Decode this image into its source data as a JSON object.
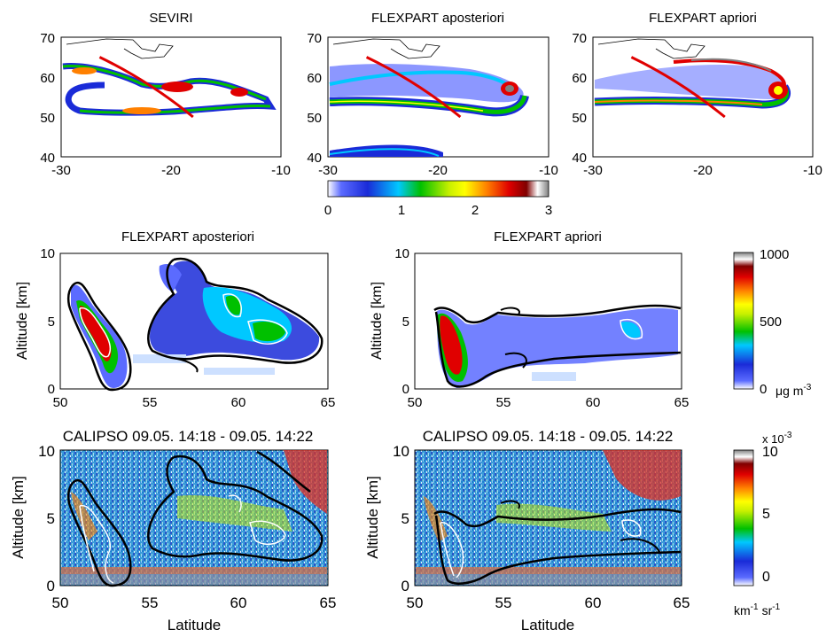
{
  "figure": {
    "top_colorbar": {
      "ticks": [
        "0",
        "1",
        "2",
        "3"
      ]
    },
    "conc_colorbar": {
      "ticks": [
        "0",
        "500",
        "1000"
      ],
      "unit_prefix": "μg m",
      "unit_exp": "-3"
    },
    "back_colorbar": {
      "ticks": [
        "0",
        "5",
        "10"
      ],
      "scale_prefix": "x 10",
      "scale_exp": "-3",
      "unit_a": "km",
      "unit_a_exp": "-1",
      "unit_b": "sr",
      "unit_b_exp": "-1"
    }
  },
  "chart_data": [
    {
      "type": "heatmap",
      "title": "SEVIRI",
      "xlim": [
        -30,
        -10
      ],
      "ylim": [
        40,
        70
      ],
      "x_ticks": [
        "-30",
        "-20",
        "-10"
      ],
      "y_ticks": [
        "40",
        "50",
        "60",
        "70"
      ],
      "track": {
        "x": [
          -26.5,
          -22,
          -18
        ],
        "y": [
          65,
          59,
          50
        ]
      }
    },
    {
      "type": "heatmap",
      "title": "FLEXPART aposteriori",
      "xlim": [
        -30,
        -10
      ],
      "ylim": [
        40,
        70
      ],
      "x_ticks": [
        "-30",
        "-20",
        "-10"
      ],
      "y_ticks": [
        "40",
        "50",
        "60",
        "70"
      ],
      "track": {
        "x": [
          -26.5,
          -22,
          -18
        ],
        "y": [
          65,
          59,
          50
        ]
      }
    },
    {
      "type": "heatmap",
      "title": "FLEXPART apriori",
      "xlim": [
        -30,
        -10
      ],
      "ylim": [
        40,
        70
      ],
      "x_ticks": [
        "-30",
        "-20",
        "-10"
      ],
      "y_ticks": [
        "40",
        "50",
        "60",
        "70"
      ],
      "track": {
        "x": [
          -26.5,
          -22,
          -18
        ],
        "y": [
          65,
          59,
          50
        ]
      }
    },
    {
      "type": "heatmap",
      "title": "FLEXPART aposteriori",
      "ylabel": "Altitude [km]",
      "xlim": [
        50,
        65
      ],
      "ylim": [
        0,
        10
      ],
      "x_ticks": [
        "50",
        "55",
        "60",
        "65"
      ],
      "y_ticks": [
        "0",
        "5",
        "10"
      ]
    },
    {
      "type": "heatmap",
      "title": "FLEXPART apriori",
      "ylabel": "Altitude [km]",
      "xlim": [
        50,
        65
      ],
      "ylim": [
        0,
        10
      ],
      "x_ticks": [
        "50",
        "55",
        "60",
        "65"
      ],
      "y_ticks": [
        "0",
        "5",
        "10"
      ]
    },
    {
      "type": "heatmap",
      "title": "CALIPSO 09.05. 14:18 - 09.05. 14:22",
      "xlabel": "Latitude",
      "ylabel": "Altitude [km]",
      "xlim": [
        50,
        65
      ],
      "ylim": [
        0,
        10
      ],
      "x_ticks": [
        "50",
        "55",
        "60",
        "65"
      ],
      "y_ticks": [
        "0",
        "5",
        "10"
      ]
    },
    {
      "type": "heatmap",
      "title": "CALIPSO 09.05. 14:18 - 09.05. 14:22",
      "xlabel": "Latitude",
      "ylabel": "Altitude [km]",
      "xlim": [
        50,
        65
      ],
      "ylim": [
        0,
        10
      ],
      "x_ticks": [
        "50",
        "55",
        "60",
        "65"
      ],
      "y_ticks": [
        "0",
        "5",
        "10"
      ]
    }
  ]
}
